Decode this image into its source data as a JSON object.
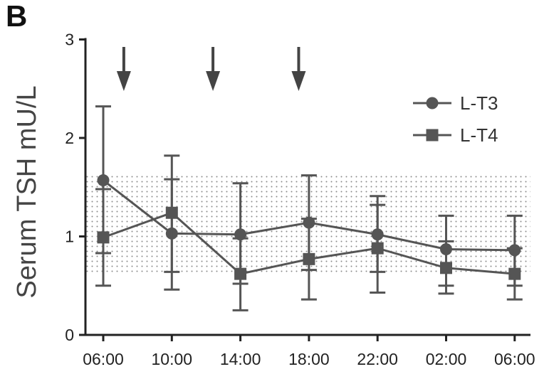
{
  "panel_label": "B",
  "chart_data": {
    "type": "line",
    "title": "",
    "xlabel": "",
    "ylabel": "Serum  TSH mU/L",
    "categories": [
      "06:00",
      "10:00",
      "14:00",
      "18:00",
      "22:00",
      "02:00",
      "06:00"
    ],
    "ylim": [
      0,
      3
    ],
    "yticks": [
      "0",
      "1",
      "2",
      "3"
    ],
    "reference_range": [
      0.62,
      1.64
    ],
    "dose_arrows_at": [
      0.3,
      1.6,
      2.85
    ],
    "legend_position": "top-right",
    "colors": {
      "series": "#555555",
      "band": "#9a9a9a",
      "axis": "#222222"
    },
    "series": [
      {
        "name": "L-T3",
        "marker": "circle",
        "values": [
          1.57,
          1.03,
          1.02,
          1.14,
          1.02,
          0.87,
          0.86
        ],
        "err_low": [
          0.83,
          0.64,
          0.52,
          0.66,
          0.64,
          0.5,
          0.5
        ],
        "err_high": [
          2.32,
          1.58,
          1.54,
          1.62,
          1.41,
          1.21,
          1.21
        ]
      },
      {
        "name": "L-T4",
        "marker": "square",
        "values": [
          0.99,
          1.24,
          0.62,
          0.77,
          0.88,
          0.68,
          0.62
        ],
        "err_low": [
          0.5,
          0.46,
          0.25,
          0.36,
          0.43,
          0.42,
          0.36
        ],
        "err_high": [
          1.48,
          1.82,
          0.98,
          1.18,
          1.32,
          0.95,
          0.88
        ]
      }
    ]
  }
}
